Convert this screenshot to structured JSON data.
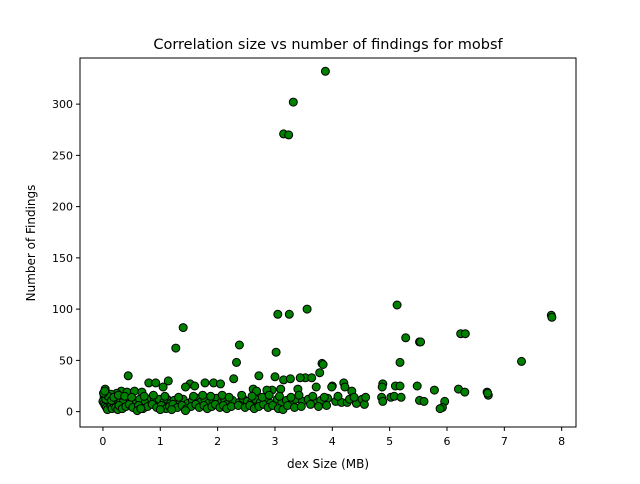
{
  "chart_data": {
    "type": "scatter",
    "title": "Correlation size vs number of findings for mobsf",
    "xlabel": "dex Size (MB)",
    "ylabel": "Number of Findings",
    "xlim": [
      -0.4,
      8.25
    ],
    "ylim": [
      -15,
      345
    ],
    "xticks": [
      0,
      1,
      2,
      3,
      4,
      5,
      6,
      7,
      8
    ],
    "yticks": [
      0,
      50,
      100,
      150,
      200,
      250,
      300
    ],
    "grid": false,
    "marker_color": "#008000",
    "marker_edge": "#000000",
    "points": [
      [
        3.88,
        332
      ],
      [
        3.32,
        302
      ],
      [
        3.15,
        271
      ],
      [
        3.24,
        270
      ],
      [
        5.13,
        104
      ],
      [
        3.56,
        100
      ],
      [
        3.05,
        95
      ],
      [
        3.25,
        95
      ],
      [
        7.82,
        94
      ],
      [
        7.83,
        92
      ],
      [
        1.4,
        82
      ],
      [
        6.24,
        76
      ],
      [
        6.32,
        76
      ],
      [
        5.28,
        72
      ],
      [
        5.52,
        68
      ],
      [
        5.54,
        68
      ],
      [
        2.38,
        65
      ],
      [
        1.27,
        62
      ],
      [
        3.02,
        58
      ],
      [
        7.3,
        49
      ],
      [
        2.33,
        48
      ],
      [
        5.18,
        48
      ],
      [
        3.82,
        47
      ],
      [
        3.84,
        46
      ],
      [
        3.78,
        38
      ],
      [
        0.44,
        35
      ],
      [
        2.72,
        35
      ],
      [
        3.0,
        34
      ],
      [
        3.53,
        33
      ],
      [
        3.44,
        33
      ],
      [
        2.28,
        32
      ],
      [
        3.15,
        31
      ],
      [
        3.27,
        32
      ],
      [
        3.64,
        33
      ],
      [
        1.14,
        30
      ],
      [
        0.8,
        28
      ],
      [
        0.92,
        28
      ],
      [
        1.52,
        27
      ],
      [
        1.78,
        28
      ],
      [
        1.93,
        28
      ],
      [
        2.05,
        27
      ],
      [
        1.44,
        24
      ],
      [
        1.6,
        25
      ],
      [
        1.05,
        24
      ],
      [
        4.2,
        28
      ],
      [
        4.22,
        24
      ],
      [
        4.88,
        27
      ],
      [
        4.87,
        24
      ],
      [
        5.1,
        25
      ],
      [
        5.18,
        25
      ],
      [
        5.48,
        25
      ],
      [
        4.0,
        25
      ],
      [
        3.99,
        24
      ],
      [
        4.34,
        20
      ],
      [
        3.72,
        24
      ],
      [
        2.95,
        21
      ],
      [
        2.62,
        22
      ],
      [
        2.68,
        20
      ],
      [
        2.86,
        21
      ],
      [
        3.1,
        22
      ],
      [
        3.4,
        22
      ],
      [
        6.2,
        22
      ],
      [
        6.31,
        19
      ],
      [
        5.78,
        21
      ],
      [
        6.7,
        19
      ],
      [
        6.72,
        16
      ],
      [
        6.71,
        18
      ],
      [
        0.04,
        22
      ],
      [
        0.32,
        20
      ],
      [
        0.42,
        19
      ],
      [
        0.55,
        20
      ],
      [
        0.68,
        19
      ],
      [
        0.24,
        18
      ],
      [
        0.14,
        17
      ],
      [
        0.06,
        16
      ],
      [
        0.02,
        14
      ],
      [
        0.1,
        13
      ],
      [
        0.18,
        12
      ],
      [
        0.3,
        13
      ],
      [
        0.36,
        10
      ],
      [
        0.48,
        11
      ],
      [
        0.58,
        9
      ],
      [
        0.64,
        12
      ],
      [
        0.74,
        10
      ],
      [
        0.84,
        13
      ],
      [
        0.9,
        11
      ],
      [
        0.98,
        12
      ],
      [
        1.06,
        9
      ],
      [
        1.12,
        12
      ],
      [
        1.18,
        8
      ],
      [
        1.24,
        11
      ],
      [
        1.34,
        9
      ],
      [
        1.4,
        12
      ],
      [
        1.48,
        8
      ],
      [
        1.56,
        11
      ],
      [
        1.64,
        13
      ],
      [
        1.7,
        9
      ],
      [
        1.78,
        12
      ],
      [
        1.84,
        8
      ],
      [
        1.92,
        11
      ],
      [
        1.98,
        13
      ],
      [
        2.06,
        9
      ],
      [
        2.12,
        12
      ],
      [
        2.18,
        8
      ],
      [
        2.26,
        11
      ],
      [
        2.38,
        9
      ],
      [
        2.44,
        13
      ],
      [
        2.52,
        10
      ],
      [
        2.58,
        8
      ],
      [
        2.66,
        12
      ],
      [
        2.74,
        9
      ],
      [
        2.82,
        11
      ],
      [
        2.92,
        8
      ],
      [
        3.04,
        12
      ],
      [
        3.12,
        9
      ],
      [
        3.2,
        11
      ],
      [
        3.3,
        8
      ],
      [
        3.36,
        12
      ],
      [
        3.48,
        10
      ],
      [
        3.58,
        12
      ],
      [
        3.7,
        9
      ],
      [
        3.8,
        11
      ],
      [
        3.92,
        13
      ],
      [
        4.06,
        10
      ],
      [
        4.16,
        9
      ],
      [
        4.26,
        9
      ],
      [
        4.3,
        12
      ],
      [
        4.42,
        8
      ],
      [
        4.52,
        12
      ],
      [
        4.56,
        7
      ],
      [
        4.86,
        14
      ],
      [
        4.88,
        10
      ],
      [
        5.02,
        14
      ],
      [
        5.08,
        15
      ],
      [
        5.2,
        14
      ],
      [
        5.52,
        11
      ],
      [
        5.6,
        10
      ],
      [
        5.96,
        10
      ],
      [
        5.92,
        4
      ],
      [
        5.88,
        3
      ],
      [
        0.0,
        10
      ],
      [
        0.02,
        8
      ],
      [
        0.04,
        6
      ],
      [
        0.06,
        4
      ],
      [
        0.08,
        2
      ],
      [
        0.12,
        9
      ],
      [
        0.14,
        5
      ],
      [
        0.16,
        3
      ],
      [
        0.2,
        7
      ],
      [
        0.22,
        4
      ],
      [
        0.26,
        2
      ],
      [
        0.28,
        6
      ],
      [
        0.34,
        3
      ],
      [
        0.4,
        5
      ],
      [
        0.46,
        7
      ],
      [
        0.52,
        4
      ],
      [
        0.62,
        6
      ],
      [
        0.7,
        3
      ],
      [
        0.78,
        5
      ],
      [
        0.86,
        7
      ],
      [
        0.94,
        4
      ],
      [
        1.02,
        6
      ],
      [
        1.1,
        3
      ],
      [
        1.16,
        5
      ],
      [
        1.22,
        7
      ],
      [
        1.3,
        4
      ],
      [
        1.38,
        6
      ],
      [
        1.46,
        3
      ],
      [
        1.54,
        5
      ],
      [
        1.62,
        7
      ],
      [
        1.68,
        4
      ],
      [
        1.76,
        6
      ],
      [
        1.82,
        3
      ],
      [
        1.9,
        5
      ],
      [
        1.96,
        7
      ],
      [
        2.04,
        4
      ],
      [
        2.1,
        6
      ],
      [
        2.16,
        3
      ],
      [
        2.24,
        5
      ],
      [
        2.36,
        6
      ],
      [
        2.48,
        4
      ],
      [
        2.56,
        6
      ],
      [
        2.64,
        3
      ],
      [
        2.72,
        5
      ],
      [
        2.8,
        7
      ],
      [
        2.88,
        4
      ],
      [
        2.96,
        6
      ],
      [
        3.06,
        3
      ],
      [
        3.14,
        2
      ],
      [
        3.22,
        6
      ],
      [
        3.34,
        4
      ],
      [
        3.46,
        5
      ],
      [
        3.62,
        7
      ],
      [
        3.76,
        5
      ],
      [
        3.9,
        6
      ],
      [
        0.6,
        1
      ],
      [
        0.66,
        3
      ],
      [
        1.0,
        2
      ],
      [
        1.2,
        2
      ],
      [
        1.44,
        1
      ],
      [
        0.05,
        12
      ],
      [
        0.09,
        15
      ],
      [
        0.01,
        18
      ],
      [
        0.03,
        20
      ],
      [
        0.15,
        11
      ],
      [
        0.19,
        14
      ],
      [
        0.27,
        16
      ],
      [
        0.38,
        15
      ],
      [
        0.5,
        14
      ],
      [
        0.72,
        15
      ],
      [
        0.88,
        16
      ],
      [
        1.08,
        15
      ],
      [
        1.32,
        14
      ],
      [
        1.58,
        15
      ],
      [
        1.74,
        16
      ],
      [
        1.88,
        15
      ],
      [
        2.08,
        16
      ],
      [
        2.2,
        14
      ],
      [
        2.42,
        16
      ],
      [
        2.6,
        15
      ],
      [
        2.78,
        14
      ],
      [
        2.9,
        16
      ],
      [
        3.08,
        15
      ],
      [
        3.28,
        14
      ],
      [
        3.42,
        16
      ],
      [
        3.66,
        15
      ],
      [
        3.86,
        14
      ],
      [
        4.1,
        15
      ],
      [
        4.38,
        14
      ],
      [
        4.58,
        14
      ]
    ]
  }
}
